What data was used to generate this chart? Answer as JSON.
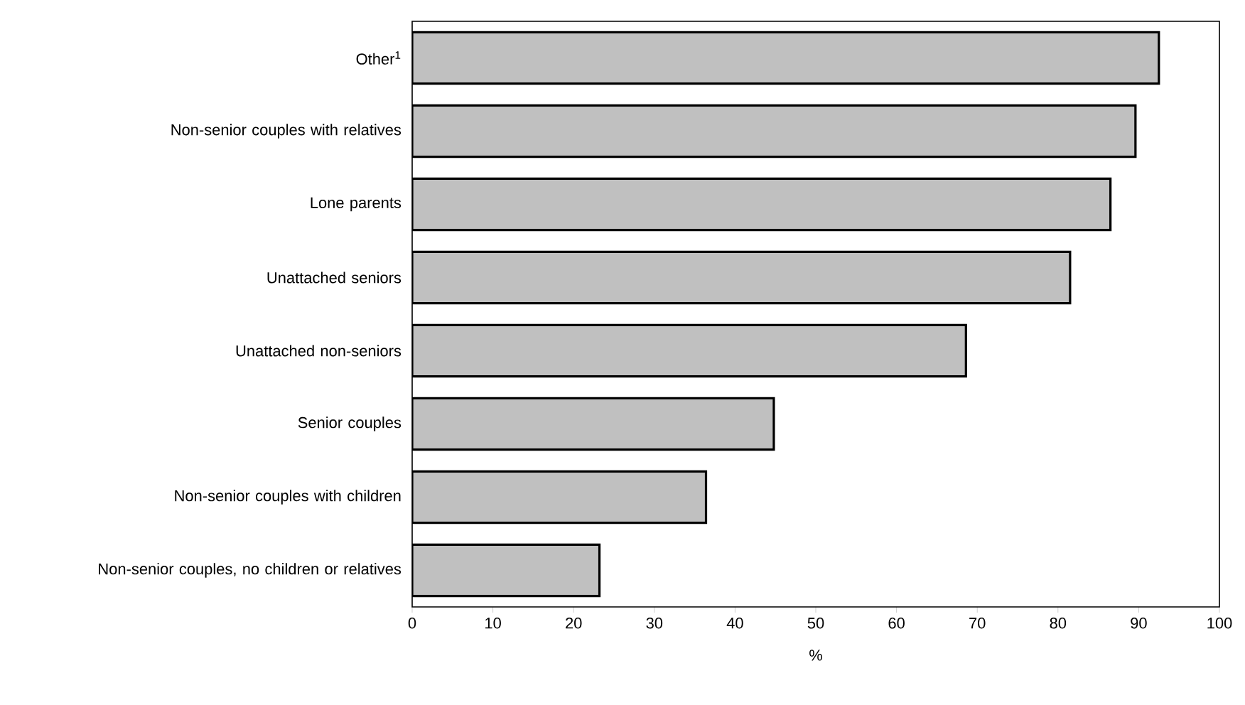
{
  "chart_data": {
    "type": "bar",
    "orientation": "horizontal",
    "xlabel": "%",
    "categories": [
      "Other$^{1}$",
      "Non-senior couples with relatives",
      "Lone parents",
      "Unattached seniors",
      "Unattached non-seniors",
      "Senior couples",
      "Non-senior couples with children",
      "Non-senior couples, no children or relatives"
    ],
    "values": [
      92.5,
      89.6,
      86.5,
      81.5,
      68.6,
      44.8,
      36.4,
      23.2
    ],
    "color": "#c0c0c0",
    "xlim": [
      0,
      100
    ],
    "xticks": [
      0,
      10,
      20,
      30,
      40,
      50,
      60,
      70,
      80,
      90,
      100
    ],
    "grid": false
  }
}
